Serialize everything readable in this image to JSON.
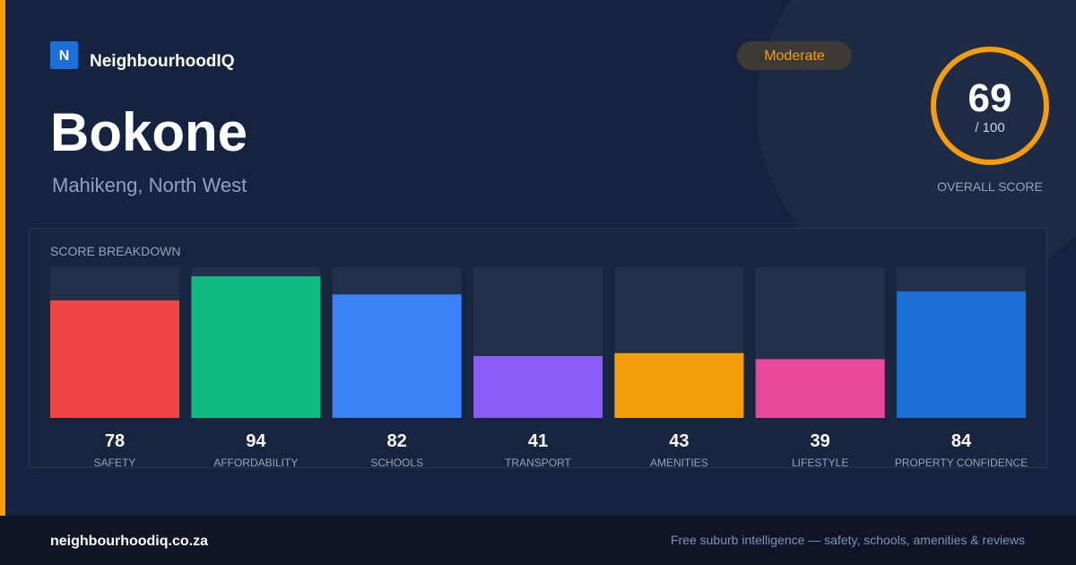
{
  "brand": {
    "logo": "N",
    "name": "NeighbourhoodIQ"
  },
  "title": "Bokone",
  "subtitle": "Mahikeng, North West",
  "badge": "Moderate",
  "overall": {
    "score": 69,
    "max_label": "/ 100",
    "label": "OVERALL SCORE"
  },
  "chart_data": {
    "type": "bar",
    "title": "SCORE BREAKDOWN",
    "categories": [
      "SAFETY",
      "AFFORDABILITY",
      "SCHOOLS",
      "TRANSPORT",
      "AMENITIES",
      "LIFESTYLE",
      "PROPERTY CONFIDENCE"
    ],
    "values": [
      78,
      94,
      82,
      41,
      43,
      39,
      84
    ],
    "colors": [
      "#ef4444",
      "#10b981",
      "#3b82f6",
      "#8b5cf6",
      "#f59e0b",
      "#ec4899",
      "#1d6fd8"
    ],
    "ylim": [
      0,
      100
    ]
  },
  "footer": {
    "url": "neighbourhoodiq.co.za",
    "tagline": "Free suburb intelligence — safety, schools, amenities & reviews"
  }
}
